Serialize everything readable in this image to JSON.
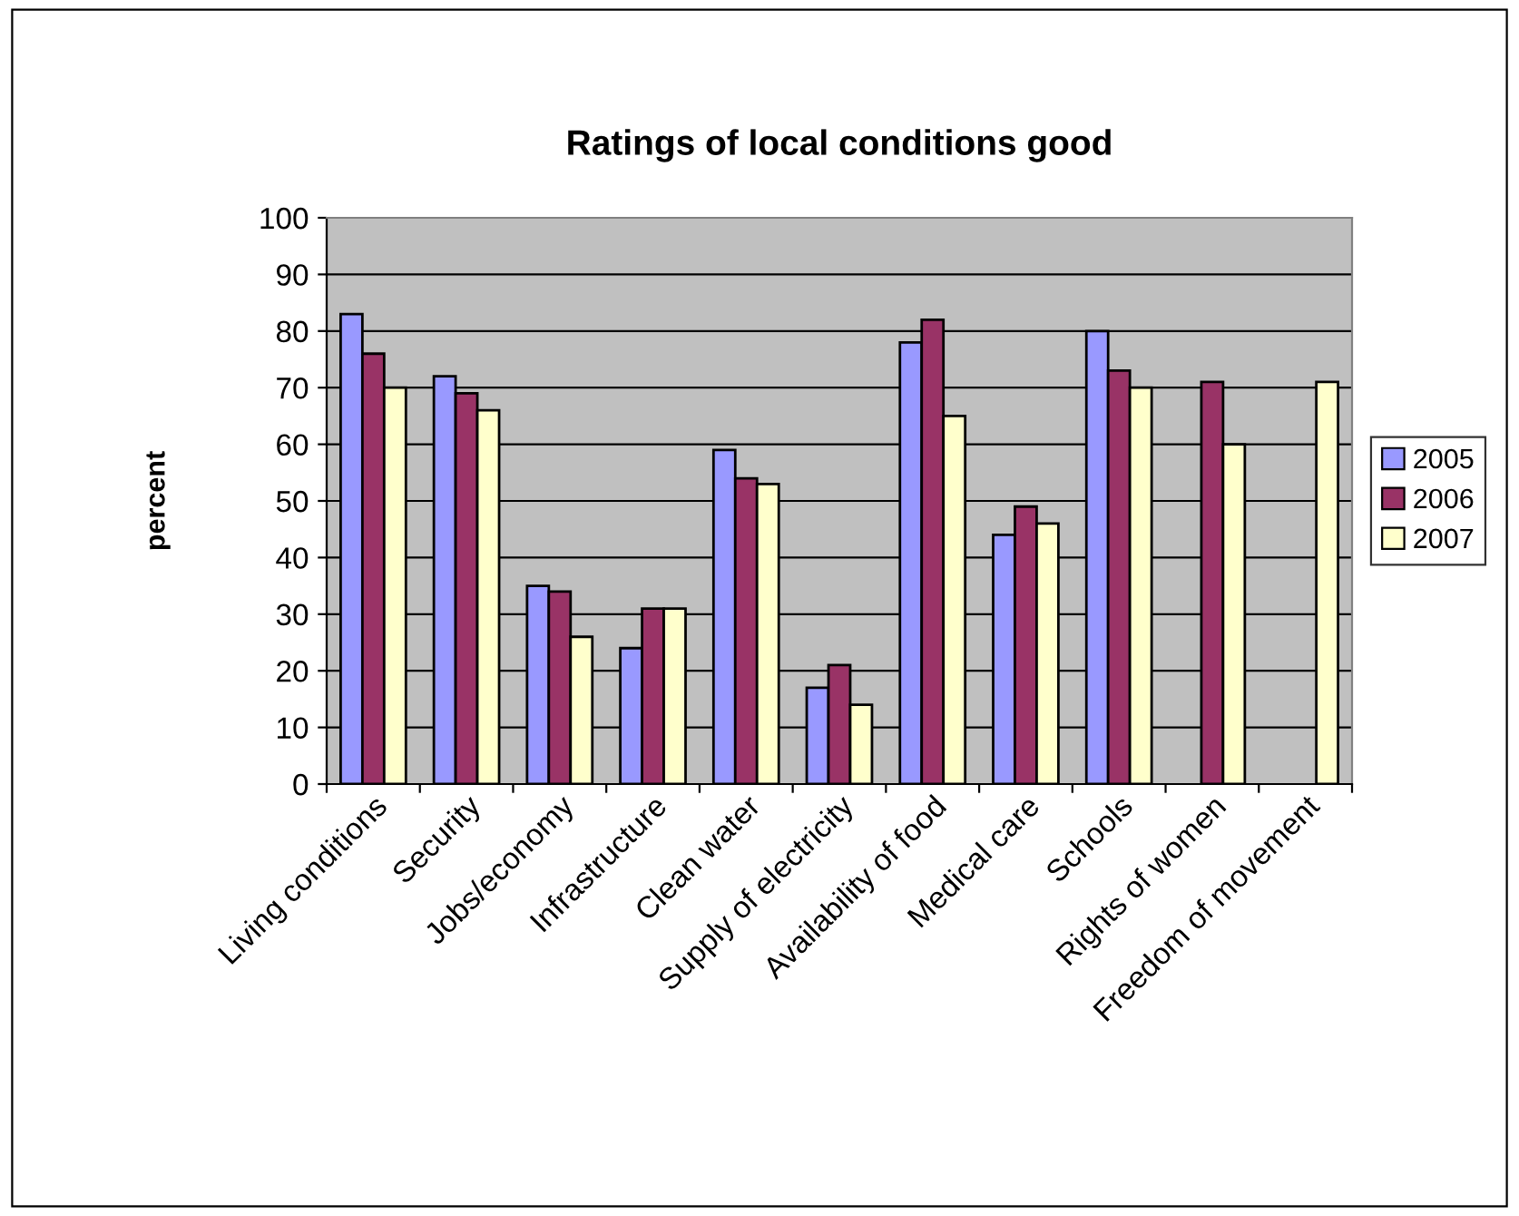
{
  "chart_data": {
    "type": "bar",
    "title": "Ratings of local conditions good",
    "ylabel": "percent",
    "categories": [
      "Living conditions",
      "Security",
      "Jobs/economy",
      "Infrastructure",
      "Clean water",
      "Supply of electricity",
      "Availability of food",
      "Medical care",
      "Schools",
      "Rights of women",
      "Freedom of movement"
    ],
    "series": [
      {
        "name": "2005",
        "color": "#9999ff",
        "values": [
          83,
          72,
          35,
          24,
          59,
          17,
          78,
          44,
          80,
          null,
          null
        ]
      },
      {
        "name": "2006",
        "color": "#993366",
        "values": [
          76,
          69,
          34,
          31,
          54,
          21,
          82,
          49,
          73,
          71,
          null
        ]
      },
      {
        "name": "2007",
        "color": "#ffffcc",
        "values": [
          70,
          66,
          26,
          31,
          53,
          14,
          65,
          46,
          70,
          60,
          71
        ]
      }
    ],
    "ylim": [
      0,
      100
    ],
    "yticks": [
      0,
      10,
      20,
      30,
      40,
      50,
      60,
      70,
      80,
      90,
      100
    ],
    "grid": "y",
    "legend": "right"
  }
}
